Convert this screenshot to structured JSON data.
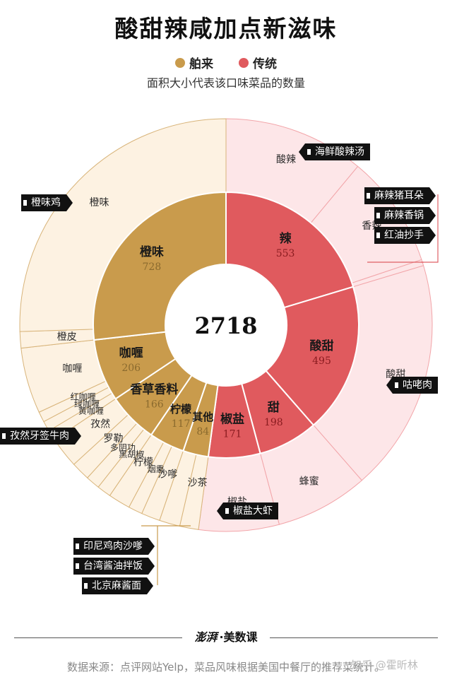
{
  "title": "酸甜辣咸加点新滋味",
  "legend": [
    {
      "label": "舶来",
      "color": "#c99b4c"
    },
    {
      "label": "传统",
      "color": "#e05a5e"
    }
  ],
  "subtitle": "面积大小代表该口味菜品的数量",
  "colors": {
    "foreign_inner": "#c99b4c",
    "foreign_outer": "#fdf2e2",
    "foreign_line": "#d8b47a",
    "traditional_inner": "#e05a5e",
    "traditional_outer": "#fde6e8",
    "traditional_line": "#f2a5a9"
  },
  "chart_data": {
    "type": "sunburst",
    "total": 2718,
    "inner": [
      {
        "name": "辣",
        "value": 553,
        "group": "传统"
      },
      {
        "name": "酸甜",
        "value": 495,
        "group": "传统"
      },
      {
        "name": "甜",
        "value": 198,
        "group": "传统"
      },
      {
        "name": "椒盐",
        "value": 171,
        "group": "传统"
      },
      {
        "name": "其他",
        "value": 84,
        "group": "舶来"
      },
      {
        "name": "柠檬",
        "value": 117,
        "group": "舶来"
      },
      {
        "name": "香草香料",
        "value": 166,
        "group": "舶来"
      },
      {
        "name": "咖喱",
        "value": 206,
        "group": "舶来"
      },
      {
        "name": "橙味",
        "value": 728,
        "group": "舶来"
      }
    ],
    "outer": [
      {
        "name": "酸辣",
        "parent": "辣",
        "value": 300
      },
      {
        "name": "香辣",
        "parent": "辣",
        "value": 240
      },
      {
        "name": "",
        "parent": "辣",
        "value": 13
      },
      {
        "name": "酸甜",
        "parent": "酸甜",
        "value": 495
      },
      {
        "name": "蜂蜜",
        "parent": "甜",
        "value": 198
      },
      {
        "name": "椒盐",
        "parent": "椒盐",
        "value": 171
      },
      {
        "name": "沙茶",
        "parent": "其他",
        "value": 40
      },
      {
        "name": "",
        "parent": "其他",
        "value": 44
      },
      {
        "name": "沙嗲",
        "parent": "柠檬",
        "value": 40
      },
      {
        "name": "烟熏",
        "parent": "柠檬",
        "value": 30
      },
      {
        "name": "柠檬",
        "parent": "柠檬",
        "value": 47
      },
      {
        "name": "黑胡椒",
        "parent": "香草香料",
        "value": 30
      },
      {
        "name": "多阴功",
        "parent": "香草香料",
        "value": 30
      },
      {
        "name": "罗勒",
        "parent": "香草香料",
        "value": 40
      },
      {
        "name": "孜然",
        "parent": "香草香料",
        "value": 66
      },
      {
        "name": "黄咖喱",
        "parent": "咖喱",
        "value": 22
      },
      {
        "name": "绿咖喱",
        "parent": "咖喱",
        "value": 22
      },
      {
        "name": "红咖喱",
        "parent": "咖喱",
        "value": 22
      },
      {
        "name": "咖喱",
        "parent": "咖喱",
        "value": 140
      },
      {
        "name": "橙皮",
        "parent": "橙味",
        "value": 35
      },
      {
        "name": "橙味",
        "parent": "橙味",
        "value": 693
      }
    ]
  },
  "callouts": {
    "haixian": "海鲜酸辣汤",
    "zhuerduo": "麻辣猪耳朵",
    "xiangguo": "麻辣香锅",
    "chaoshou": "红油抄手",
    "gulurou": "咕咾肉",
    "jiaoyandaxia": "椒盐大虾",
    "chengweiji": "橙味鸡",
    "ziranniurou": "孜然牙签牛肉",
    "yinni": "印尼鸡肉沙嗲",
    "taiwan": "台湾酱油拌饭",
    "beijing": "北京麻酱面"
  },
  "brand": {
    "logo": "澎湃",
    "name": "美数课"
  },
  "source": "数据来源：点评网站Yelp，菜品风味根据美国中餐厅的推荐菜统计。",
  "watermark": "知乎 @霍昕林"
}
